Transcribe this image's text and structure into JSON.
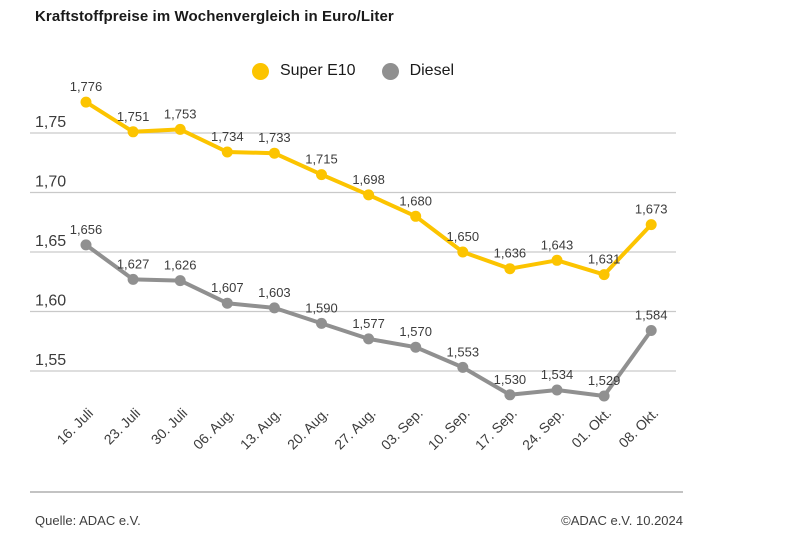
{
  "title": "Kraftstoffpreise im Wochenvergleich in Euro/Liter",
  "legend": {
    "items": [
      "Super E10",
      "Diesel"
    ]
  },
  "footer": {
    "source": "Quelle: ADAC e.V.",
    "copyright": "©ADAC e.V. 10.2024"
  },
  "chart_data": {
    "type": "line",
    "title": "Kraftstoffpreise im Wochenvergleich in Euro/Liter",
    "xlabel": "",
    "ylabel": "Euro/Liter",
    "grid": true,
    "legend_position": "top-center",
    "ylim": [
      1.55,
      1.75
    ],
    "categories": [
      "16. Juli",
      "23. Juli",
      "30. Juli",
      "06. Aug.",
      "13. Aug.",
      "20. Aug.",
      "27. Aug.",
      "03. Sep.",
      "10. Sep.",
      "17. Sep.",
      "24. Sep.",
      "01. Okt.",
      "08. Okt."
    ],
    "y_ticks": [
      {
        "value": 1.75,
        "label": "1,75"
      },
      {
        "value": 1.7,
        "label": "1,70"
      },
      {
        "value": 1.65,
        "label": "1,65"
      },
      {
        "value": 1.6,
        "label": "1,60"
      },
      {
        "value": 1.55,
        "label": "1,55"
      }
    ],
    "series": [
      {
        "name": "Super E10",
        "color": "#FCC400",
        "values": [
          1.776,
          1.751,
          1.753,
          1.734,
          1.733,
          1.715,
          1.698,
          1.68,
          1.65,
          1.636,
          1.643,
          1.631,
          1.673
        ],
        "labels": [
          "1,776",
          "1,751",
          "1,753",
          "1,734",
          "1,733",
          "1,715",
          "1,698",
          "1,680",
          "1,650",
          "1,636",
          "1,643",
          "1,631",
          "1,673"
        ]
      },
      {
        "name": "Diesel",
        "color": "#909090",
        "values": [
          1.656,
          1.627,
          1.626,
          1.607,
          1.603,
          1.59,
          1.577,
          1.57,
          1.553,
          1.53,
          1.534,
          1.529,
          1.584
        ],
        "labels": [
          "1,656",
          "1,627",
          "1,626",
          "1,607",
          "1,603",
          "1,590",
          "1,577",
          "1,570",
          "1,553",
          "1,530",
          "1,534",
          "1,529",
          "1,584"
        ]
      }
    ],
    "colors": {
      "grid": "#c9c9c9",
      "separator": "#c3c3c3",
      "axis_text": "#3c3c3c",
      "label_text": "#3c3c3c",
      "background": "#ffffff"
    }
  }
}
